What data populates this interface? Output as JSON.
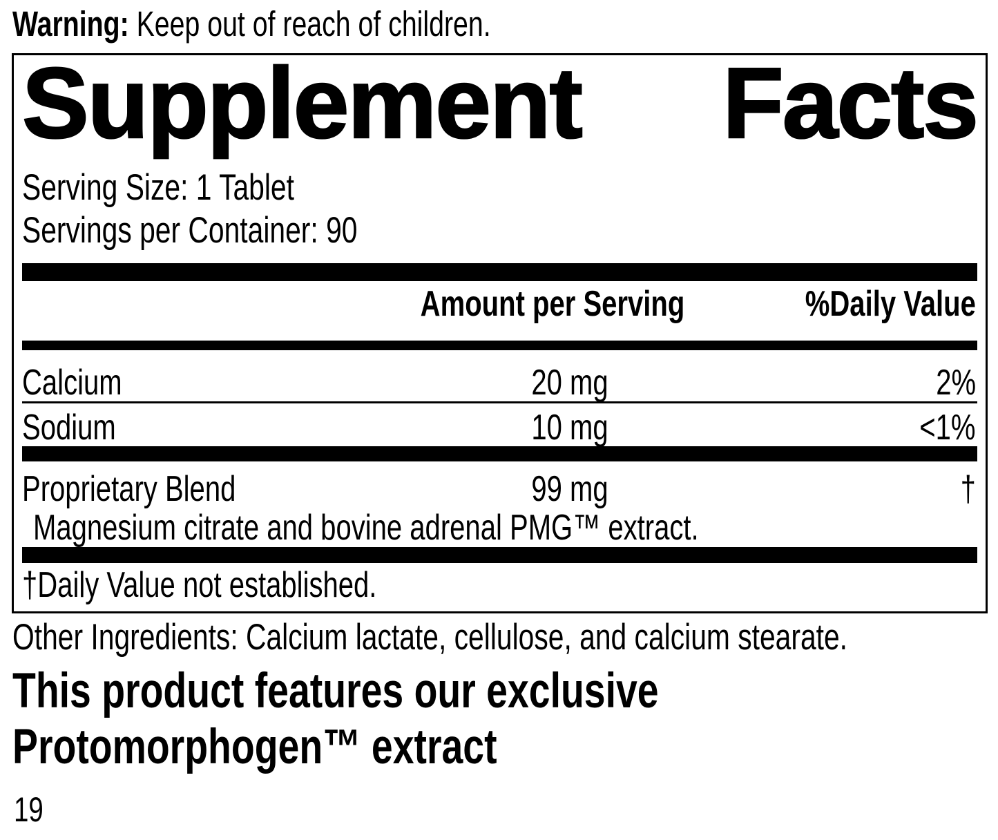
{
  "colors": {
    "text": "#000000",
    "background": "#ffffff"
  },
  "warning": {
    "label": "Warning:",
    "text": " Keep out of reach of children."
  },
  "panel": {
    "title": {
      "word1": "Supplement",
      "word2": "Facts"
    },
    "serving_size": "Serving Size: 1 Tablet",
    "servings_per_container": "Servings per Container: 90",
    "columns": {
      "amount": "Amount per Serving",
      "daily_value": "%Daily Value"
    },
    "rows": [
      {
        "name": "Calcium",
        "amount": "20 mg",
        "daily_value": "2%"
      },
      {
        "name": "Sodium",
        "amount": "10 mg",
        "daily_value": "<1%"
      },
      {
        "name": "Proprietary Blend",
        "amount": "99 mg",
        "daily_value": "†"
      }
    ],
    "proprietary_description": "Magnesium citrate and bovine adrenal PMG™ extract.",
    "footnote": "†Daily Value not established."
  },
  "other_ingredients": "Other Ingredients: Calcium lactate, cellulose, and calcium stearate.",
  "feature": {
    "line1": "This product features our exclusive",
    "line2": "Protomorphogen™ extract"
  },
  "page_number": "19"
}
